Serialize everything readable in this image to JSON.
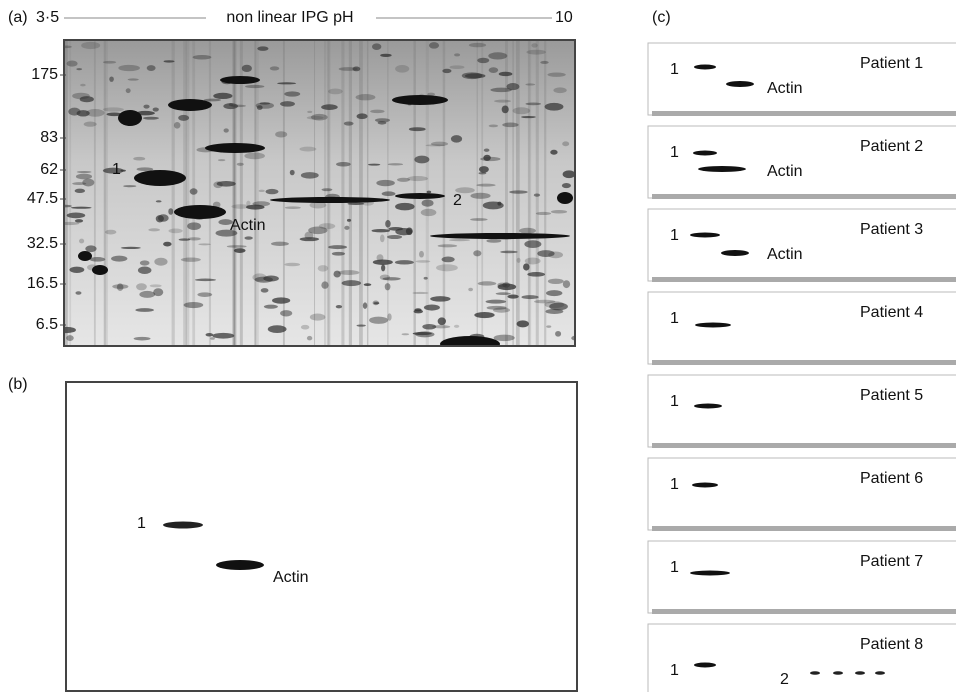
{
  "panel_a": {
    "label": "(a)",
    "ph_start": "3·5",
    "ph_axis": "non linear IPG pH",
    "ph_end": "10",
    "mw_markers": [
      "175",
      "83",
      "62",
      "47.5",
      "32.5",
      "16.5",
      "6.5"
    ],
    "spots": [
      "1",
      "Actin",
      "2"
    ]
  },
  "panel_b": {
    "label": "(b)",
    "spots": [
      "1",
      "Actin"
    ]
  },
  "panel_c": {
    "label": "(c)",
    "blots": [
      {
        "patient": "Patient 1",
        "spots": [
          "1",
          "Actin"
        ]
      },
      {
        "patient": "Patient 2",
        "spots": [
          "1",
          "Actin"
        ]
      },
      {
        "patient": "Patient 3",
        "spots": [
          "1",
          "Actin"
        ]
      },
      {
        "patient": "Patient 4",
        "spots": [
          "1"
        ]
      },
      {
        "patient": "Patient 5",
        "spots": [
          "1"
        ]
      },
      {
        "patient": "Patient 6",
        "spots": [
          "1"
        ]
      },
      {
        "patient": "Patient 7",
        "spots": [
          "1"
        ]
      },
      {
        "patient": "Patient 8",
        "spots": [
          "1",
          "2"
        ]
      }
    ]
  }
}
